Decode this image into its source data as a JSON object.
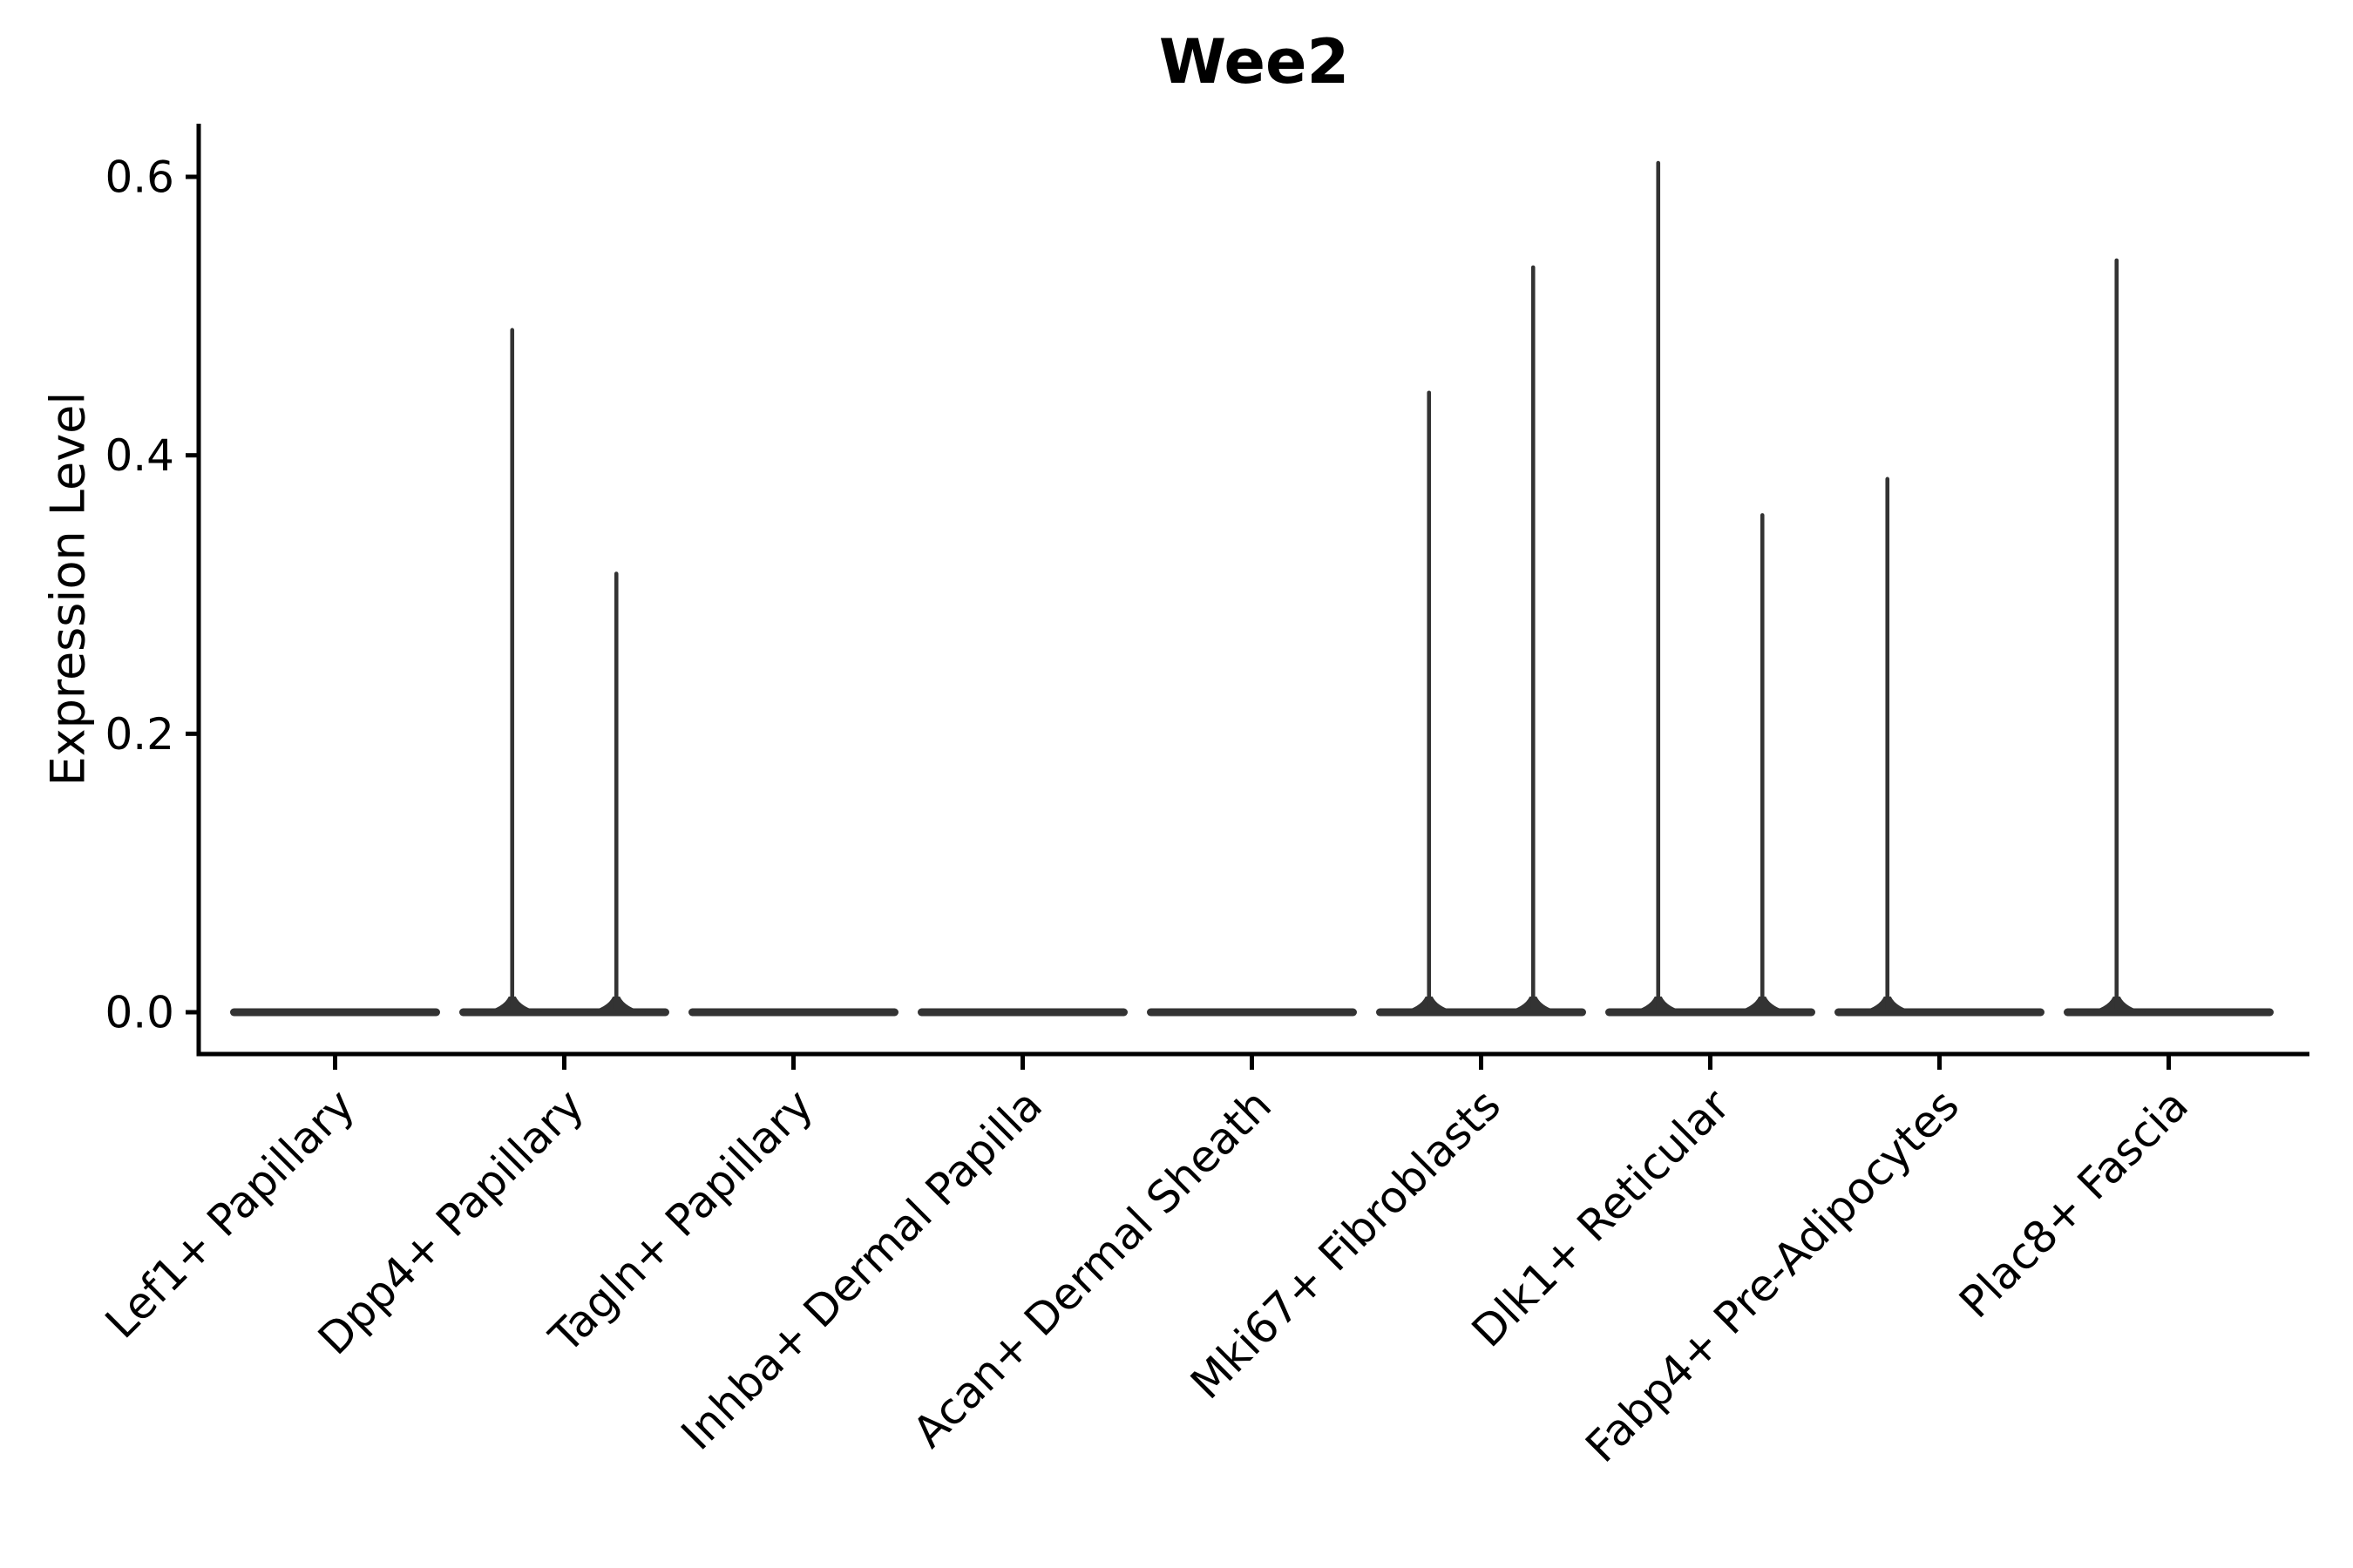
{
  "header": {
    "title": "Wee2"
  },
  "axes": {
    "ylabel": "Expression Level",
    "ytick_labels": [
      "0.0",
      "0.2",
      "0.4",
      "0.6"
    ],
    "xtick_labels": [
      "Lef1+ Papillary",
      "Dpp4+ Papillary",
      "Tagln+ Papillary",
      "Inhba+ Dermal Papilla",
      "Acan+ Dermal Sheath",
      "Mki67+ Fibroblasts",
      "Dlk1+ Reticular",
      "Fabp4+ Pre-Adipocytes",
      "Plac8+ Fascia"
    ]
  },
  "style": {
    "axis_color": "#000000",
    "text_color": "#000000",
    "violin_color": "#333333",
    "background": "#ffffff"
  },
  "chart_data": {
    "type": "violin",
    "title": "Wee2",
    "xlabel": "",
    "ylabel": "Expression Level",
    "ylim": [
      0,
      0.64
    ],
    "yticks": [
      0,
      0.2,
      0.4,
      0.6
    ],
    "grid": false,
    "legend_position": "none",
    "violins_per_category": 2,
    "categories": [
      "Lef1+ Papillary",
      "Dpp4+ Papillary",
      "Tagln+ Papillary",
      "Inhba+ Dermal Papilla",
      "Acan+ Dermal Sheath",
      "Mki67+ Fibroblasts",
      "Dlk1+ Reticular",
      "Fabp4+ Pre-Adipocytes",
      "Plac8+ Fascia"
    ],
    "series": [
      {
        "category": "Lef1+ Papillary",
        "violin_max_expression": [
          0,
          0
        ]
      },
      {
        "category": "Dpp4+ Papillary",
        "violin_max_expression": [
          0.49,
          0.315
        ]
      },
      {
        "category": "Tagln+ Papillary",
        "violin_max_expression": [
          0,
          0
        ]
      },
      {
        "category": "Inhba+ Dermal Papilla",
        "violin_max_expression": [
          0,
          0
        ]
      },
      {
        "category": "Acan+ Dermal Sheath",
        "violin_max_expression": [
          0,
          0
        ]
      },
      {
        "category": "Mki67+ Fibroblasts",
        "violin_max_expression": [
          0.445,
          0.535
        ]
      },
      {
        "category": "Dlk1+ Reticular",
        "violin_max_expression": [
          0.61,
          0.357
        ]
      },
      {
        "category": "Fabp4+ Pre-Adipocytes",
        "violin_max_expression": [
          0.383,
          0
        ]
      },
      {
        "category": "Plac8+ Fascia",
        "violin_max_expression": [
          0.54,
          0
        ]
      }
    ]
  }
}
